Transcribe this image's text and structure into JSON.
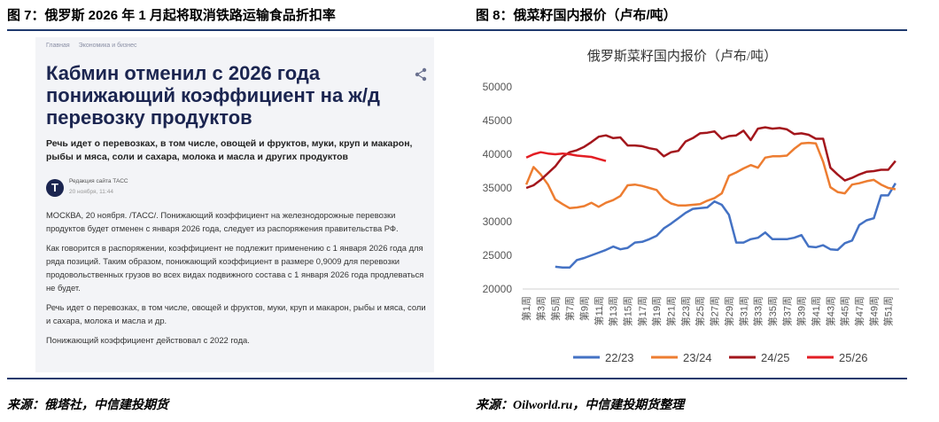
{
  "left_panel": {
    "figure_title": "图 7：俄罗斯 2026 年 1 月起将取消铁路运输食品折扣率",
    "breadcrumb": [
      "Главная",
      "Экономика и бизнес"
    ],
    "headline": [
      "Кабмин отменил с 2026 года",
      "понижающий коэффициент на ж/д",
      "перевозку продуктов"
    ],
    "lead": "Речь идет о перевозках, в том числе, овощей и фруктов, муки, круп и макарон, рыбы и мяса, соли и сахара, молока и масла и других продуктов",
    "author": "Редакция сайта ТАСС",
    "date": "20 ноября, 11:44",
    "paragraphs": [
      "МОСКВА, 20 ноября. /ТАСС/. Понижающий коэффициент на железнодорожные перевозки продуктов будет отменен с января 2026 года, следует из распоряжения правительства РФ.",
      "Как говорится в распоряжении, коэффициент не подлежит применению с 1 января 2026 года для ряда позиций. Таким образом, понижающий коэффициент в размере 0,9009 для перевозки продовольственных грузов во всех видах подвижного состава с 1 января 2026 года продлеваться не будет.",
      "Речь идет о перевозках, в том числе, овощей и фруктов, муки, круп и макарон, рыбы и мяса, соли и сахара, молока и масла и др.",
      "Понижающий коэффициент действовал с 2022 года."
    ],
    "source": "来源：俄塔社，中信建投期货"
  },
  "chart_data": {
    "type": "line",
    "figure_title": "图 8：俄菜籽国内报价（卢布/吨）",
    "title": "俄罗斯菜籽国内报价（卢布/吨）",
    "source": "来源：Oilworld.ru，中信建投期货整理",
    "categories": [
      "第1周",
      null,
      "第3周",
      null,
      "第5周",
      null,
      "第7周",
      null,
      "第9周",
      null,
      "第11周",
      null,
      "第13周",
      null,
      "第15周",
      null,
      "第17周",
      null,
      "第19周",
      null,
      "第21周",
      null,
      "第23周",
      null,
      "第25周",
      null,
      "第27周",
      null,
      "第29周",
      null,
      "第31周",
      null,
      "第33周",
      null,
      "第35周",
      null,
      "第37周",
      null,
      "第39周",
      null,
      "第41周",
      null,
      "第43周",
      null,
      "第45周",
      null,
      "第47周",
      null,
      "第49周",
      null,
      "第51周",
      null
    ],
    "ylim": [
      20000,
      50000
    ],
    "yticks": [
      20000,
      25000,
      30000,
      35000,
      40000,
      45000,
      50000
    ],
    "grid": false,
    "legend": "bottom",
    "series": [
      {
        "name": "22/23",
        "color": "#4472c4",
        "values": [
          null,
          null,
          null,
          null,
          23300,
          23200,
          23200,
          24300,
          24600,
          25000,
          25400,
          25800,
          26300,
          25900,
          26100,
          26900,
          27000,
          27400,
          27900,
          29000,
          29700,
          30500,
          31300,
          31900,
          32000,
          32100,
          33000,
          32500,
          31000,
          26900,
          26900,
          27400,
          27600,
          28400,
          27400,
          27400,
          27400,
          27600,
          28000,
          26300,
          26200,
          26500,
          25900,
          25800,
          26800,
          27200,
          29500,
          30200,
          30500,
          33900,
          33900,
          35700
        ]
      },
      {
        "name": "23/24",
        "color": "#ed7d31",
        "values": [
          35500,
          38100,
          37000,
          35500,
          33300,
          32600,
          32000,
          32100,
          32300,
          32800,
          32200,
          32800,
          33200,
          33800,
          35400,
          35500,
          35300,
          35000,
          34700,
          33400,
          32700,
          32400,
          32400,
          32500,
          32600,
          33100,
          33500,
          34200,
          36800,
          37300,
          37900,
          38400,
          38000,
          39500,
          39700,
          39700,
          39800,
          40800,
          41600,
          41700,
          41600,
          38900,
          35100,
          34400,
          34200,
          35500,
          35700,
          36000,
          36200,
          35500,
          35000,
          34800
        ]
      },
      {
        "name": "24/25",
        "color": "#a3161c",
        "values": [
          35000,
          35400,
          36200,
          37200,
          38200,
          39600,
          40300,
          40600,
          41100,
          41800,
          42600,
          42800,
          42400,
          42500,
          41300,
          41300,
          41200,
          40900,
          40700,
          39700,
          40300,
          40500,
          41900,
          42400,
          43100,
          43200,
          43400,
          42300,
          42700,
          42800,
          43500,
          42100,
          43800,
          44000,
          43800,
          43900,
          43700,
          43000,
          43100,
          42900,
          42300,
          42300,
          38000,
          37000,
          36100,
          36500,
          37000,
          37400,
          37500,
          37700,
          37700,
          39000
        ]
      },
      {
        "name": "25/26",
        "color": "#e31e24",
        "values": [
          39500,
          40000,
          40300,
          40100,
          40000,
          40100,
          40000,
          39800,
          39700,
          39600,
          39300,
          39000,
          null,
          null,
          null,
          null,
          null,
          null,
          null,
          null,
          null,
          null,
          null,
          null,
          null,
          null,
          null,
          null,
          null,
          null,
          null,
          null,
          null,
          null,
          null,
          null,
          null,
          null,
          null,
          null,
          null,
          null,
          null,
          null,
          null,
          null,
          null,
          null,
          null,
          null,
          null,
          null
        ]
      }
    ]
  }
}
